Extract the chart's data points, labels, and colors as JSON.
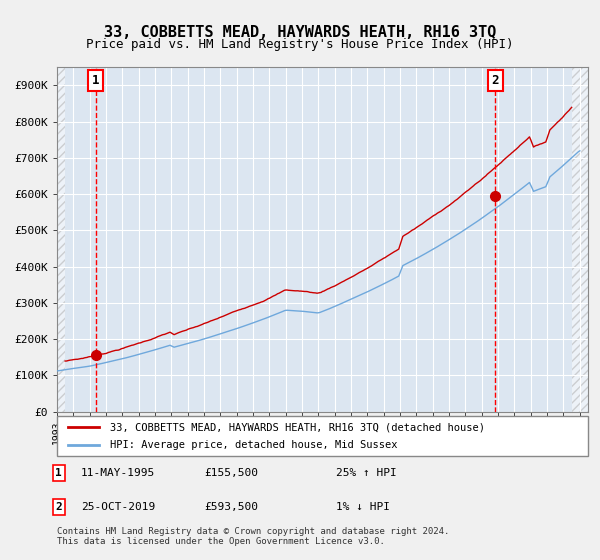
{
  "title": "33, COBBETTS MEAD, HAYWARDS HEATH, RH16 3TQ",
  "subtitle": "Price paid vs. HM Land Registry's House Price Index (HPI)",
  "legend_line1": "33, COBBETTS MEAD, HAYWARDS HEATH, RH16 3TQ (detached house)",
  "legend_line2": "HPI: Average price, detached house, Mid Sussex",
  "annotation1_label": "1",
  "annotation1_date": "11-MAY-1995",
  "annotation1_price": "£155,500",
  "annotation1_hpi": "25% ↑ HPI",
  "annotation2_label": "2",
  "annotation2_date": "25-OCT-2019",
  "annotation2_price": "£593,500",
  "annotation2_hpi": "1% ↓ HPI",
  "footnote": "Contains HM Land Registry data © Crown copyright and database right 2024.\nThis data is licensed under the Open Government Licence v3.0.",
  "sale1_year": 1995.36,
  "sale1_value": 155500,
  "sale2_year": 2019.81,
  "sale2_value": 593500,
  "hpi_line_color": "#6fa8dc",
  "price_line_color": "#cc0000",
  "sale_dot_color": "#cc0000",
  "vline_color": "#ff0000",
  "background_color": "#dce6f1",
  "plot_bg_color": "#dce6f1",
  "grid_color": "#ffffff",
  "ylim": [
    0,
    950000
  ],
  "yticks": [
    0,
    100000,
    200000,
    300000,
    400000,
    500000,
    600000,
    700000,
    800000,
    900000
  ],
  "ytick_labels": [
    "£0",
    "£100K",
    "£200K",
    "£300K",
    "£400K",
    "£500K",
    "£600K",
    "£700K",
    "£800K",
    "£900K"
  ],
  "hatch_region_end_year": 1993.5,
  "hatch_region_start_year": 2024.5,
  "xlim_start": 1993.0,
  "xlim_end": 2025.5
}
